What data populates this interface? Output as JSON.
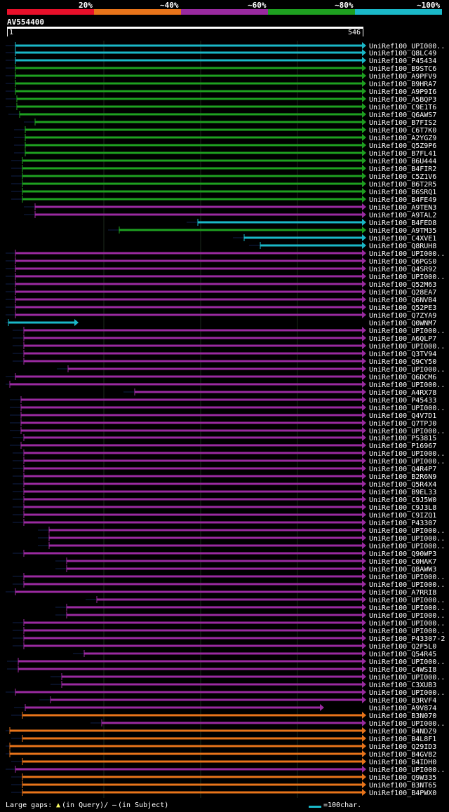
{
  "header": {
    "percent_labels": [
      "20%",
      "~40%",
      "~60%",
      "~80%",
      "~100%"
    ],
    "color_scale": [
      "#e8102a",
      "#e8741a",
      "#9a2aa0",
      "#1ea020",
      "#1ab8c8"
    ]
  },
  "query": {
    "name": "AV554400",
    "start": "1",
    "end": "546"
  },
  "hits": [
    {
      "label": "UniRef100_UPI000..",
      "color": "#1ab8c8",
      "start": 22,
      "end": 516
    },
    {
      "label": "UniRef100_Q8LC49",
      "color": "#1ab8c8",
      "start": 22,
      "end": 516
    },
    {
      "label": "UniRef100_P45434",
      "color": "#1ab8c8",
      "start": 22,
      "end": 516
    },
    {
      "label": "UniRef100_B9STC6",
      "color": "#1ea020",
      "start": 22,
      "end": 516
    },
    {
      "label": "UniRef100_A9PFV9",
      "color": "#1ea020",
      "start": 22,
      "end": 516
    },
    {
      "label": "UniRef100_B9HRA7",
      "color": "#1ea020",
      "start": 22,
      "end": 516
    },
    {
      "label": "UniRef100_A9P9I6",
      "color": "#1ea020",
      "start": 22,
      "end": 516
    },
    {
      "label": "UniRef100_A5BQP3",
      "color": "#1ea020",
      "start": 24,
      "end": 516
    },
    {
      "label": "UniRef100_C9E1T6",
      "color": "#1ea020",
      "start": 24,
      "end": 516
    },
    {
      "label": "UniRef100_Q6AWS7",
      "color": "#1ea020",
      "start": 28,
      "end": 516
    },
    {
      "label": "UniRef100_B7FIS2",
      "color": "#1ea020",
      "start": 50,
      "end": 516
    },
    {
      "label": "UniRef100_C6T7K0",
      "color": "#1ea020",
      "start": 36,
      "end": 516
    },
    {
      "label": "UniRef100_A2YGZ9",
      "color": "#1ea020",
      "start": 36,
      "end": 516
    },
    {
      "label": "UniRef100_Q5Z9P6",
      "color": "#1ea020",
      "start": 36,
      "end": 516
    },
    {
      "label": "UniRef100_B7FL41",
      "color": "#1ea020",
      "start": 36,
      "end": 516
    },
    {
      "label": "UniRef100_B6U444",
      "color": "#1ea020",
      "start": 32,
      "end": 516
    },
    {
      "label": "UniRef100_B4FIR2",
      "color": "#1ea020",
      "start": 32,
      "end": 516
    },
    {
      "label": "UniRef100_C5Z1V6",
      "color": "#1ea020",
      "start": 32,
      "end": 516
    },
    {
      "label": "UniRef100_B6T2R5",
      "color": "#1ea020",
      "start": 32,
      "end": 516
    },
    {
      "label": "UniRef100_B6SRQ1",
      "color": "#1ea020",
      "start": 32,
      "end": 516
    },
    {
      "label": "UniRef100_B4FE49",
      "color": "#1ea020",
      "start": 32,
      "end": 516
    },
    {
      "label": "UniRef100_A9TEN3",
      "color": "#9a2aa0",
      "start": 50,
      "end": 516
    },
    {
      "label": "UniRef100_A9TAL2",
      "color": "#9a2aa0",
      "start": 50,
      "end": 516
    },
    {
      "label": "UniRef100_B4FED8",
      "color": "#1ab8c8",
      "start": 282,
      "end": 516
    },
    {
      "label": "UniRef100_A9TM35",
      "color": "#1ea020",
      "start": 170,
      "end": 516
    },
    {
      "label": "UniRef100_C4XVE1",
      "color": "#1ab8c8",
      "start": 348,
      "end": 516
    },
    {
      "label": "UniRef100_Q8RUH8",
      "color": "#1ab8c8",
      "start": 371,
      "end": 516
    },
    {
      "label": "UniRef100_UPI000..",
      "color": "#9a2aa0",
      "start": 22,
      "end": 516
    },
    {
      "label": "UniRef100_Q6PGS0",
      "color": "#9a2aa0",
      "start": 22,
      "end": 516
    },
    {
      "label": "UniRef100_Q4SR92",
      "color": "#9a2aa0",
      "start": 22,
      "end": 516
    },
    {
      "label": "UniRef100_UPI000..",
      "color": "#9a2aa0",
      "start": 22,
      "end": 516
    },
    {
      "label": "UniRef100_Q52M63",
      "color": "#9a2aa0",
      "start": 22,
      "end": 516
    },
    {
      "label": "UniRef100_Q28EA7",
      "color": "#9a2aa0",
      "start": 22,
      "end": 516
    },
    {
      "label": "UniRef100_Q6NVB4",
      "color": "#9a2aa0",
      "start": 22,
      "end": 516
    },
    {
      "label": "UniRef100_Q52PE3",
      "color": "#9a2aa0",
      "start": 22,
      "end": 516
    },
    {
      "label": "UniRef100_Q7ZYA9",
      "color": "#9a2aa0",
      "start": 22,
      "end": 516
    },
    {
      "label": "UniRef100_Q0WNM7",
      "color": "#1ab8c8",
      "start": 12,
      "end": 106
    },
    {
      "label": "UniRef100_UPI000..",
      "color": "#9a2aa0",
      "start": 34,
      "end": 516
    },
    {
      "label": "UniRef100_A6QLP7",
      "color": "#9a2aa0",
      "start": 34,
      "end": 516
    },
    {
      "label": "UniRef100_UPI000..",
      "color": "#9a2aa0",
      "start": 34,
      "end": 516
    },
    {
      "label": "UniRef100_Q3TV94",
      "color": "#9a2aa0",
      "start": 34,
      "end": 516
    },
    {
      "label": "UniRef100_Q9CY50",
      "color": "#9a2aa0",
      "start": 34,
      "end": 516
    },
    {
      "label": "UniRef100_UPI000..",
      "color": "#9a2aa0",
      "start": 97,
      "end": 516
    },
    {
      "label": "UniRef100_Q6DCM6",
      "color": "#9a2aa0",
      "start": 22,
      "end": 516
    },
    {
      "label": "UniRef100_UPI000..",
      "color": "#9a2aa0",
      "start": 14,
      "end": 516
    },
    {
      "label": "UniRef100_A4RX78",
      "color": "#9a2aa0",
      "start": 192,
      "end": 516
    },
    {
      "label": "UniRef100_P45433",
      "color": "#9a2aa0",
      "start": 30,
      "end": 516
    },
    {
      "label": "UniRef100_UPI000..",
      "color": "#9a2aa0",
      "start": 30,
      "end": 516
    },
    {
      "label": "UniRef100_Q4V7D1",
      "color": "#9a2aa0",
      "start": 30,
      "end": 516
    },
    {
      "label": "UniRef100_Q7TPJ0",
      "color": "#9a2aa0",
      "start": 30,
      "end": 516
    },
    {
      "label": "UniRef100_UPI000..",
      "color": "#9a2aa0",
      "start": 30,
      "end": 516
    },
    {
      "label": "UniRef100_P53815",
      "color": "#9a2aa0",
      "start": 34,
      "end": 516
    },
    {
      "label": "UniRef100_P16967",
      "color": "#9a2aa0",
      "start": 30,
      "end": 516
    },
    {
      "label": "UniRef100_UPI000..",
      "color": "#9a2aa0",
      "start": 34,
      "end": 516
    },
    {
      "label": "UniRef100_UPI000..",
      "color": "#9a2aa0",
      "start": 34,
      "end": 516
    },
    {
      "label": "UniRef100_Q4R4P7",
      "color": "#9a2aa0",
      "start": 34,
      "end": 516
    },
    {
      "label": "UniRef100_B2R6N9",
      "color": "#9a2aa0",
      "start": 34,
      "end": 516
    },
    {
      "label": "UniRef100_Q5R4X4",
      "color": "#9a2aa0",
      "start": 34,
      "end": 516
    },
    {
      "label": "UniRef100_B9EL33",
      "color": "#9a2aa0",
      "start": 34,
      "end": 516
    },
    {
      "label": "UniRef100_C9J5W0",
      "color": "#9a2aa0",
      "start": 34,
      "end": 516
    },
    {
      "label": "UniRef100_C9J3L8",
      "color": "#9a2aa0",
      "start": 34,
      "end": 516
    },
    {
      "label": "UniRef100_C9IZQ1",
      "color": "#9a2aa0",
      "start": 34,
      "end": 516
    },
    {
      "label": "UniRef100_P43307",
      "color": "#9a2aa0",
      "start": 34,
      "end": 516
    },
    {
      "label": "UniRef100_UPI000..",
      "color": "#9a2aa0",
      "start": 70,
      "end": 516
    },
    {
      "label": "UniRef100_UPI000..",
      "color": "#9a2aa0",
      "start": 70,
      "end": 516
    },
    {
      "label": "UniRef100_UPI000..",
      "color": "#9a2aa0",
      "start": 70,
      "end": 516
    },
    {
      "label": "UniRef100_Q90WP3",
      "color": "#9a2aa0",
      "start": 34,
      "end": 516
    },
    {
      "label": "UniRef100_C0HAK7",
      "color": "#9a2aa0",
      "start": 95,
      "end": 516
    },
    {
      "label": "UniRef100_Q8AWW3",
      "color": "#9a2aa0",
      "start": 95,
      "end": 516
    },
    {
      "label": "UniRef100_UPI000..",
      "color": "#9a2aa0",
      "start": 34,
      "end": 516
    },
    {
      "label": "UniRef100_UPI000..",
      "color": "#9a2aa0",
      "start": 34,
      "end": 516
    },
    {
      "label": "UniRef100_A7RRI8",
      "color": "#9a2aa0",
      "start": 22,
      "end": 516
    },
    {
      "label": "UniRef100_UPI000..",
      "color": "#9a2aa0",
      "start": 138,
      "end": 516
    },
    {
      "label": "UniRef100_UPI000..",
      "color": "#9a2aa0",
      "start": 95,
      "end": 516
    },
    {
      "label": "UniRef100_UPI000..",
      "color": "#9a2aa0",
      "start": 95,
      "end": 516
    },
    {
      "label": "UniRef100_UPI000..",
      "color": "#9a2aa0",
      "start": 34,
      "end": 516
    },
    {
      "label": "UniRef100_UPI000..",
      "color": "#9a2aa0",
      "start": 34,
      "end": 516
    },
    {
      "label": "UniRef100_P43307-2",
      "color": "#9a2aa0",
      "start": 34,
      "end": 516
    },
    {
      "label": "UniRef100_Q2F5L0",
      "color": "#9a2aa0",
      "start": 34,
      "end": 516
    },
    {
      "label": "UniRef100_Q54R45",
      "color": "#9a2aa0",
      "start": 120,
      "end": 516
    },
    {
      "label": "UniRef100_UPI000..",
      "color": "#9a2aa0",
      "start": 26,
      "end": 516
    },
    {
      "label": "UniRef100_C4WSI8",
      "color": "#9a2aa0",
      "start": 26,
      "end": 516
    },
    {
      "label": "UniRef100_UPI000..",
      "color": "#9a2aa0",
      "start": 88,
      "end": 516
    },
    {
      "label": "UniRef100_C3XUB3",
      "color": "#9a2aa0",
      "start": 88,
      "end": 516
    },
    {
      "label": "UniRef100_UPI000..",
      "color": "#9a2aa0",
      "start": 22,
      "end": 516
    },
    {
      "label": "UniRef100_B3RVF4",
      "color": "#9a2aa0",
      "start": 72,
      "end": 516
    },
    {
      "label": "UniRef100_A9V874",
      "color": "#9a2aa0",
      "start": 36,
      "end": 456
    },
    {
      "label": "UniRef100_B3N070",
      "color": "#e8741a",
      "start": 32,
      "end": 516
    },
    {
      "label": "UniRef100_UPI000..",
      "color": "#9a2aa0",
      "start": 145,
      "end": 516
    },
    {
      "label": "UniRef100_B4NDZ9",
      "color": "#e8741a",
      "start": 14,
      "end": 516
    },
    {
      "label": "UniRef100_B4L8F1",
      "color": "#e8741a",
      "start": 32,
      "end": 516
    },
    {
      "label": "UniRef100_Q29ID3",
      "color": "#e8741a",
      "start": 14,
      "end": 516
    },
    {
      "label": "UniRef100_B4GVB2",
      "color": "#e8741a",
      "start": 14,
      "end": 516
    },
    {
      "label": "UniRef100_B4IDH0",
      "color": "#e8741a",
      "start": 32,
      "end": 516
    },
    {
      "label": "UniRef100_UPI000..",
      "color": "#9a2aa0",
      "start": 22,
      "end": 516
    },
    {
      "label": "UniRef100_Q9W335",
      "color": "#e8741a",
      "start": 32,
      "end": 516
    },
    {
      "label": "UniRef100_B3NT65",
      "color": "#e8741a",
      "start": 32,
      "end": 516
    },
    {
      "label": "UniRef100_B4PWX0",
      "color": "#e8741a",
      "start": 32,
      "end": 516
    }
  ],
  "footer": {
    "large_gaps": "Large gaps:",
    "in_query": "(in Query)/",
    "in_subject": "(in Subject)",
    "scale": "=100char."
  }
}
